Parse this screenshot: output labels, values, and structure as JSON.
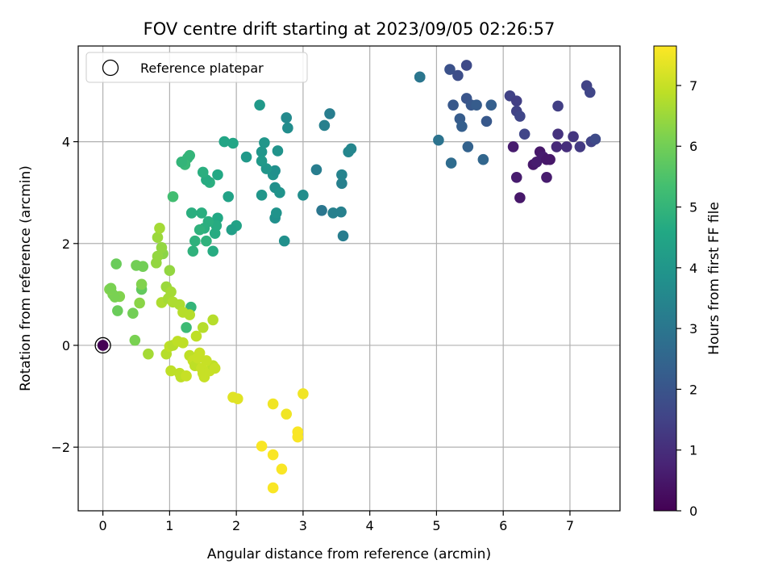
{
  "chart_data": {
    "type": "scatter",
    "title": "FOV centre drift starting at 2023/09/05 02:26:57",
    "xlabel": "Angular distance from reference (arcmin)",
    "ylabel": "Rotation from reference (arcmin)",
    "xlim": [
      -0.37,
      7.75
    ],
    "ylim": [
      -3.25,
      5.88
    ],
    "xticks": [
      0,
      1,
      2,
      3,
      4,
      5,
      6,
      7
    ],
    "yticks": [
      -2,
      0,
      2,
      4
    ],
    "xtick_labels": [
      "0",
      "1",
      "2",
      "3",
      "4",
      "5",
      "6",
      "7"
    ],
    "ytick_labels": [
      "−2",
      "0",
      "2",
      "4"
    ],
    "grid": true,
    "legend": {
      "position": "top-left",
      "entries": [
        "Reference platepar"
      ]
    },
    "reference_point": {
      "x": 0,
      "y": 0
    },
    "colorbar": {
      "label": "Hours from first FF file",
      "min": 0,
      "max": 7.65,
      "ticks": [
        0,
        1,
        2,
        3,
        4,
        5,
        6,
        7
      ],
      "tick_labels": [
        "0",
        "1",
        "2",
        "3",
        "4",
        "5",
        "6",
        "7"
      ],
      "colormap": "viridis"
    },
    "points": [
      [
        0,
        0,
        0
      ],
      [
        6.15,
        3.9,
        0.6
      ],
      [
        6.2,
        3.3,
        0.6
      ],
      [
        6.25,
        2.9,
        0.5
      ],
      [
        6.45,
        3.55,
        0.5
      ],
      [
        6.5,
        3.6,
        0.6
      ],
      [
        6.55,
        3.8,
        0.5
      ],
      [
        6.6,
        3.7,
        0.6
      ],
      [
        6.65,
        3.65,
        0.5
      ],
      [
        6.7,
        3.65,
        0.5
      ],
      [
        6.65,
        3.3,
        0.6
      ],
      [
        6.8,
        3.9,
        0.9
      ],
      [
        6.82,
        4.15,
        1.1
      ],
      [
        6.82,
        4.7,
        1.4
      ],
      [
        6.95,
        3.9,
        1.0
      ],
      [
        7.05,
        4.1,
        1.2
      ],
      [
        7.15,
        3.9,
        1.3
      ],
      [
        7.25,
        5.1,
        1.5
      ],
      [
        7.3,
        4.97,
        1.6
      ],
      [
        7.32,
        4.0,
        1.5
      ],
      [
        7.38,
        4.05,
        1.7
      ],
      [
        6.1,
        4.9,
        1.5
      ],
      [
        6.2,
        4.8,
        1.4
      ],
      [
        6.2,
        4.6,
        1.5
      ],
      [
        6.25,
        4.5,
        1.6
      ],
      [
        6.32,
        4.15,
        1.6
      ],
      [
        5.2,
        5.42,
        1.9
      ],
      [
        5.32,
        5.3,
        1.8
      ],
      [
        5.45,
        5.5,
        1.7
      ],
      [
        5.45,
        4.85,
        2.0
      ],
      [
        5.52,
        4.72,
        2.1
      ],
      [
        5.6,
        4.72,
        2.2
      ],
      [
        5.75,
        4.4,
        2.1
      ],
      [
        5.82,
        4.72,
        2.3
      ],
      [
        5.25,
        4.72,
        2.1
      ],
      [
        5.35,
        4.45,
        2.2
      ],
      [
        5.38,
        4.3,
        2.3
      ],
      [
        5.47,
        3.9,
        2.4
      ],
      [
        5.7,
        3.65,
        2.5
      ],
      [
        5.22,
        3.58,
        2.7
      ],
      [
        5.03,
        4.03,
        2.9
      ],
      [
        4.75,
        5.27,
        2.9
      ],
      [
        4.75,
        5.27,
        3.0
      ],
      [
        3.4,
        4.55,
        3.2
      ],
      [
        3.32,
        4.32,
        3.3
      ],
      [
        3.2,
        3.45,
        3.2
      ],
      [
        3.28,
        2.65,
        3.0
      ],
      [
        3.45,
        2.6,
        3.3
      ],
      [
        3.57,
        2.62,
        3.3
      ],
      [
        3.58,
        3.18,
        3.3
      ],
      [
        3.58,
        3.35,
        3.4
      ],
      [
        3.6,
        2.15,
        3.2
      ],
      [
        3.68,
        3.8,
        3.5
      ],
      [
        3.72,
        3.86,
        3.5
      ],
      [
        3.0,
        2.95,
        3.7
      ],
      [
        2.75,
        4.47,
        3.6
      ],
      [
        2.77,
        4.27,
        3.7
      ],
      [
        2.72,
        2.05,
        3.8
      ],
      [
        2.58,
        2.5,
        3.8
      ],
      [
        2.6,
        2.6,
        3.9
      ],
      [
        2.58,
        3.1,
        3.8
      ],
      [
        2.65,
        3.0,
        3.9
      ],
      [
        2.55,
        3.35,
        3.9
      ],
      [
        2.58,
        3.43,
        3.8
      ],
      [
        2.62,
        3.82,
        3.9
      ],
      [
        2.45,
        3.47,
        4.0
      ],
      [
        2.42,
        3.98,
        4.0
      ],
      [
        2.38,
        3.8,
        4.0
      ],
      [
        2.38,
        3.62,
        4.1
      ],
      [
        2.38,
        2.95,
        4.0
      ],
      [
        2.35,
        4.72,
        4.1
      ],
      [
        2.15,
        3.7,
        4.1
      ],
      [
        2.0,
        2.35,
        4.4
      ],
      [
        1.93,
        2.27,
        4.3
      ],
      [
        1.88,
        2.92,
        4.4
      ],
      [
        1.95,
        3.97,
        4.5
      ],
      [
        1.82,
        4.0,
        4.5
      ],
      [
        1.72,
        3.35,
        4.6
      ],
      [
        1.72,
        2.5,
        4.6
      ],
      [
        1.7,
        2.35,
        4.7
      ],
      [
        1.68,
        2.2,
        4.7
      ],
      [
        1.65,
        1.85,
        4.7
      ],
      [
        1.6,
        3.2,
        4.8
      ],
      [
        1.58,
        2.43,
        4.8
      ],
      [
        1.55,
        3.25,
        4.7
      ],
      [
        1.52,
        2.3,
        4.8
      ],
      [
        1.5,
        3.4,
        4.8
      ],
      [
        1.55,
        2.05,
        4.9
      ],
      [
        1.48,
        2.6,
        4.8
      ],
      [
        1.45,
        2.27,
        4.9
      ],
      [
        1.38,
        2.05,
        4.9
      ],
      [
        1.35,
        1.85,
        4.9
      ],
      [
        1.33,
        2.6,
        4.8
      ],
      [
        1.3,
        3.73,
        5.0
      ],
      [
        1.27,
        3.68,
        5.0
      ],
      [
        1.23,
        3.55,
        5.1
      ],
      [
        1.18,
        3.6,
        5.0
      ],
      [
        1.05,
        2.92,
        5.3
      ],
      [
        1.32,
        0.75,
        5.0
      ],
      [
        1.25,
        0.35,
        5.2
      ],
      [
        0.2,
        1.6,
        5.9
      ],
      [
        0.58,
        1.1,
        5.8
      ],
      [
        0.6,
        1.55,
        6.0
      ],
      [
        0.5,
        1.57,
        6.0
      ],
      [
        0.45,
        0.63,
        6.0
      ],
      [
        0.48,
        0.1,
        6.1
      ],
      [
        0.22,
        0.68,
        5.9
      ],
      [
        0.25,
        0.96,
        6.2
      ],
      [
        0.18,
        0.95,
        6.1
      ],
      [
        0.15,
        1.0,
        6.1
      ],
      [
        0.1,
        1.1,
        6.2
      ],
      [
        0.12,
        1.12,
        6.1
      ],
      [
        0.55,
        0.83,
        6.3
      ],
      [
        0.58,
        1.2,
        6.2
      ],
      [
        0.9,
        1.8,
        6.3
      ],
      [
        0.88,
        1.92,
        6.4
      ],
      [
        0.82,
        1.75,
        6.4
      ],
      [
        0.8,
        1.62,
        6.4
      ],
      [
        0.82,
        2.12,
        6.5
      ],
      [
        0.85,
        2.3,
        6.6
      ],
      [
        1.0,
        1.47,
        6.4
      ],
      [
        0.95,
        1.15,
        6.5
      ],
      [
        1.02,
        1.05,
        6.6
      ],
      [
        0.88,
        0.84,
        6.7
      ],
      [
        0.98,
        0.92,
        6.6
      ],
      [
        1.05,
        0.85,
        6.7
      ],
      [
        1.15,
        0.8,
        6.7
      ],
      [
        1.2,
        0.65,
        6.8
      ],
      [
        1.3,
        0.6,
        6.8
      ],
      [
        1.65,
        0.5,
        6.8
      ],
      [
        1.5,
        0.35,
        6.8
      ],
      [
        1.4,
        0.18,
        6.9
      ],
      [
        0.68,
        -0.17,
        6.6
      ],
      [
        0.95,
        -0.17,
        6.8
      ],
      [
        1.0,
        -0.02,
        6.9
      ],
      [
        1.05,
        0.0,
        6.8
      ],
      [
        1.12,
        0.08,
        6.9
      ],
      [
        1.2,
        0.05,
        6.9
      ],
      [
        1.02,
        -0.5,
        6.9
      ],
      [
        1.15,
        -0.55,
        6.9
      ],
      [
        1.17,
        -0.62,
        6.9
      ],
      [
        1.25,
        -0.6,
        7.0
      ],
      [
        1.3,
        -0.2,
        6.9
      ],
      [
        1.35,
        -0.3,
        7.0
      ],
      [
        1.38,
        -0.4,
        6.9
      ],
      [
        1.42,
        -0.25,
        7.0
      ],
      [
        1.45,
        -0.15,
        7.0
      ],
      [
        1.48,
        -0.45,
        7.0
      ],
      [
        1.5,
        -0.55,
        7.0
      ],
      [
        1.52,
        -0.62,
        7.0
      ],
      [
        1.6,
        -0.5,
        7.0
      ],
      [
        1.65,
        -0.4,
        6.9
      ],
      [
        1.68,
        -0.45,
        7.0
      ],
      [
        1.55,
        -0.3,
        7.0
      ],
      [
        1.95,
        -1.02,
        7.3
      ],
      [
        2.02,
        -1.05,
        7.3
      ],
      [
        2.55,
        -1.15,
        7.5
      ],
      [
        2.38,
        -1.98,
        7.6
      ],
      [
        2.55,
        -2.15,
        7.6
      ],
      [
        2.55,
        -2.8,
        7.6
      ],
      [
        2.68,
        -2.43,
        7.6
      ],
      [
        2.75,
        -1.35,
        7.5
      ],
      [
        2.92,
        -1.7,
        7.6
      ],
      [
        2.92,
        -1.8,
        7.6
      ],
      [
        3.0,
        -0.95,
        7.5
      ]
    ]
  }
}
